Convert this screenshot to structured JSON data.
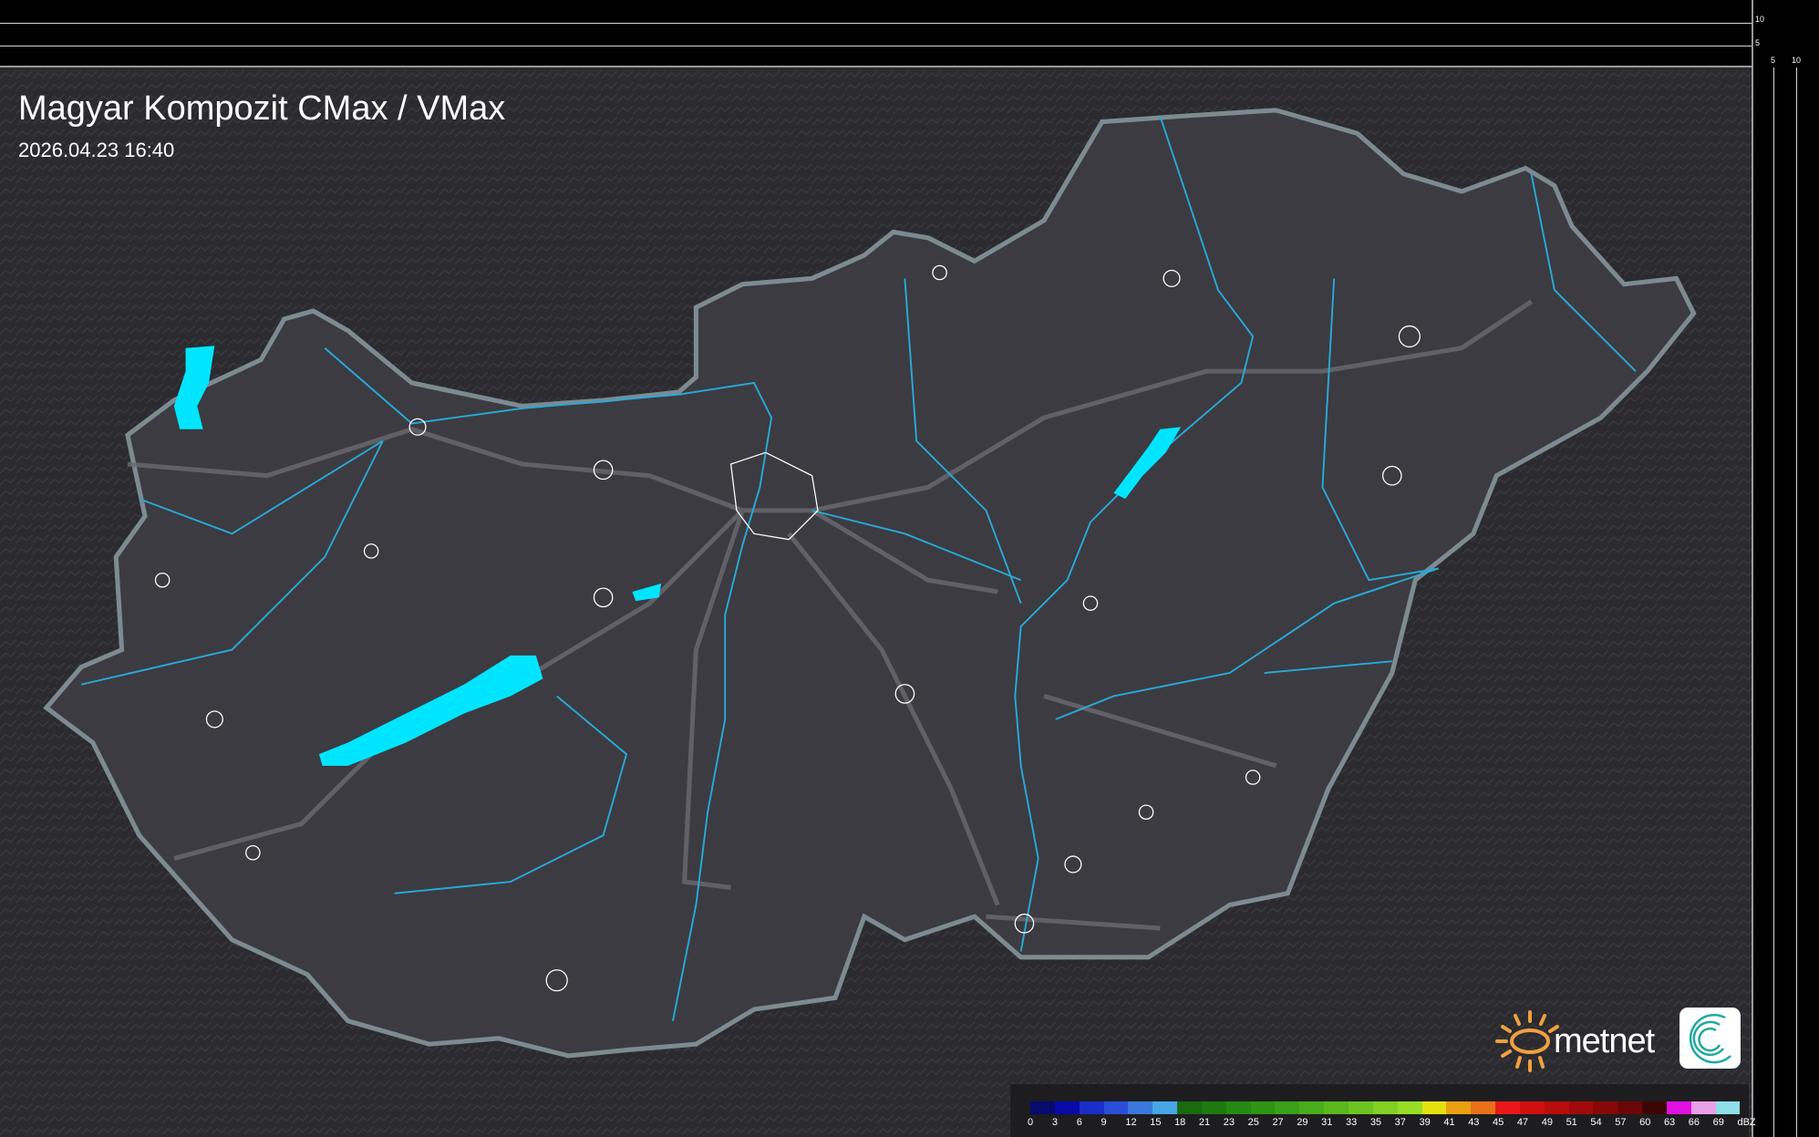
{
  "title": "Magyar Kompozit CMax / VMax",
  "timestamp": "2026.04.23 16:40",
  "axis_ticks": {
    "top_right_vertical": [
      "10",
      "5"
    ],
    "top_right_horizontal": [
      "5",
      "10"
    ]
  },
  "legend": {
    "unit": "dBZ",
    "labels": [
      "0",
      "3",
      "6",
      "9",
      "12",
      "15",
      "18",
      "21",
      "23",
      "25",
      "27",
      "29",
      "31",
      "33",
      "35",
      "37",
      "39",
      "41",
      "43",
      "45",
      "47",
      "49",
      "51",
      "54",
      "57",
      "60",
      "63",
      "66",
      "69"
    ],
    "colors": [
      "#0a0a6e",
      "#0a0aa8",
      "#1a2ec8",
      "#2a4ed8",
      "#3a78dc",
      "#46a6e6",
      "#1a6a10",
      "#1e7a10",
      "#258a12",
      "#2e9414",
      "#3aa018",
      "#4aac1c",
      "#5ab81e",
      "#6cc420",
      "#82d024",
      "#98dc26",
      "#e6e010",
      "#e8a010",
      "#e87018",
      "#e81818",
      "#d01010",
      "#b80c0c",
      "#a00a0a",
      "#880808",
      "#6a0606",
      "#3c0404",
      "#e010e0",
      "#e8a0e8",
      "#8ee0e8"
    ]
  },
  "logo": {
    "text": "metnet",
    "sun_color": "#f0a040",
    "swirl_color": "#20a8a0"
  },
  "colors": {
    "water": "#00e5ff",
    "river": "#29a9d6",
    "country_fill": "#3a3a40",
    "border": "#8a8a90"
  }
}
